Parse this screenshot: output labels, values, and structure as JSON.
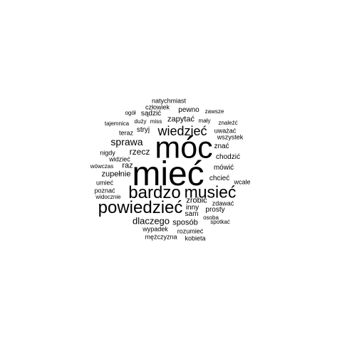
{
  "wordcloud": {
    "words": [
      {
        "text": "mieć",
        "weight": 1.0
      },
      {
        "text": "móc",
        "weight": 0.9
      },
      {
        "text": "powiedzieć",
        "weight": 0.52
      },
      {
        "text": "bardzo",
        "weight": 0.52
      },
      {
        "text": "musieć",
        "weight": 0.5
      },
      {
        "text": "wiedzieć",
        "weight": 0.38
      },
      {
        "text": "sprawa",
        "weight": 0.3
      },
      {
        "text": "dlaczego",
        "weight": 0.28
      },
      {
        "text": "rzecz",
        "weight": 0.26
      },
      {
        "text": "sposób",
        "weight": 0.25
      },
      {
        "text": "raz",
        "weight": 0.25
      },
      {
        "text": "zapytać",
        "weight": 0.24
      },
      {
        "text": "zrobić",
        "weight": 0.24
      },
      {
        "text": "zupełnie",
        "weight": 0.23
      },
      {
        "text": "chodzić",
        "weight": 0.23
      },
      {
        "text": "pewno",
        "weight": 0.22
      },
      {
        "text": "stryj",
        "weight": 0.22
      },
      {
        "text": "inny",
        "weight": 0.22
      },
      {
        "text": "prosty",
        "weight": 0.22
      },
      {
        "text": "chcieć",
        "weight": 0.22
      },
      {
        "text": "sądzić",
        "weight": 0.2
      },
      {
        "text": "sam",
        "weight": 0.2
      },
      {
        "text": "mówić",
        "weight": 0.2
      },
      {
        "text": "znać",
        "weight": 0.2
      },
      {
        "text": "człowiek",
        "weight": 0.18
      },
      {
        "text": "wypadek",
        "weight": 0.18
      },
      {
        "text": "zdawać",
        "weight": 0.18
      },
      {
        "text": "kobieta",
        "weight": 0.17
      },
      {
        "text": "mężczyzna",
        "weight": 0.17
      },
      {
        "text": "rozumieć",
        "weight": 0.17
      },
      {
        "text": "natychmiast",
        "weight": 0.17
      },
      {
        "text": "uważać",
        "weight": 0.17
      },
      {
        "text": "umieć",
        "weight": 0.17
      },
      {
        "text": "poznać",
        "weight": 0.17
      },
      {
        "text": "nigdy",
        "weight": 0.17
      },
      {
        "text": "teraz",
        "weight": 0.17
      },
      {
        "text": "widzieć",
        "weight": 0.17
      },
      {
        "text": "wszystek",
        "weight": 0.17
      },
      {
        "text": "wcale",
        "weight": 0.17
      },
      {
        "text": "spotkać",
        "weight": 0.16
      },
      {
        "text": "osoba",
        "weight": 0.16
      },
      {
        "text": "widocznie",
        "weight": 0.16
      },
      {
        "text": "wówczas",
        "weight": 0.16
      },
      {
        "text": "duży",
        "weight": 0.16
      },
      {
        "text": "ogół",
        "weight": 0.16
      },
      {
        "text": "zawsze",
        "weight": 0.16
      },
      {
        "text": "tajemnica",
        "weight": 0.15
      },
      {
        "text": "miss",
        "weight": 0.15
      },
      {
        "text": "mały",
        "weight": 0.15
      },
      {
        "text": "znaleźć",
        "weight": 0.15
      }
    ]
  }
}
